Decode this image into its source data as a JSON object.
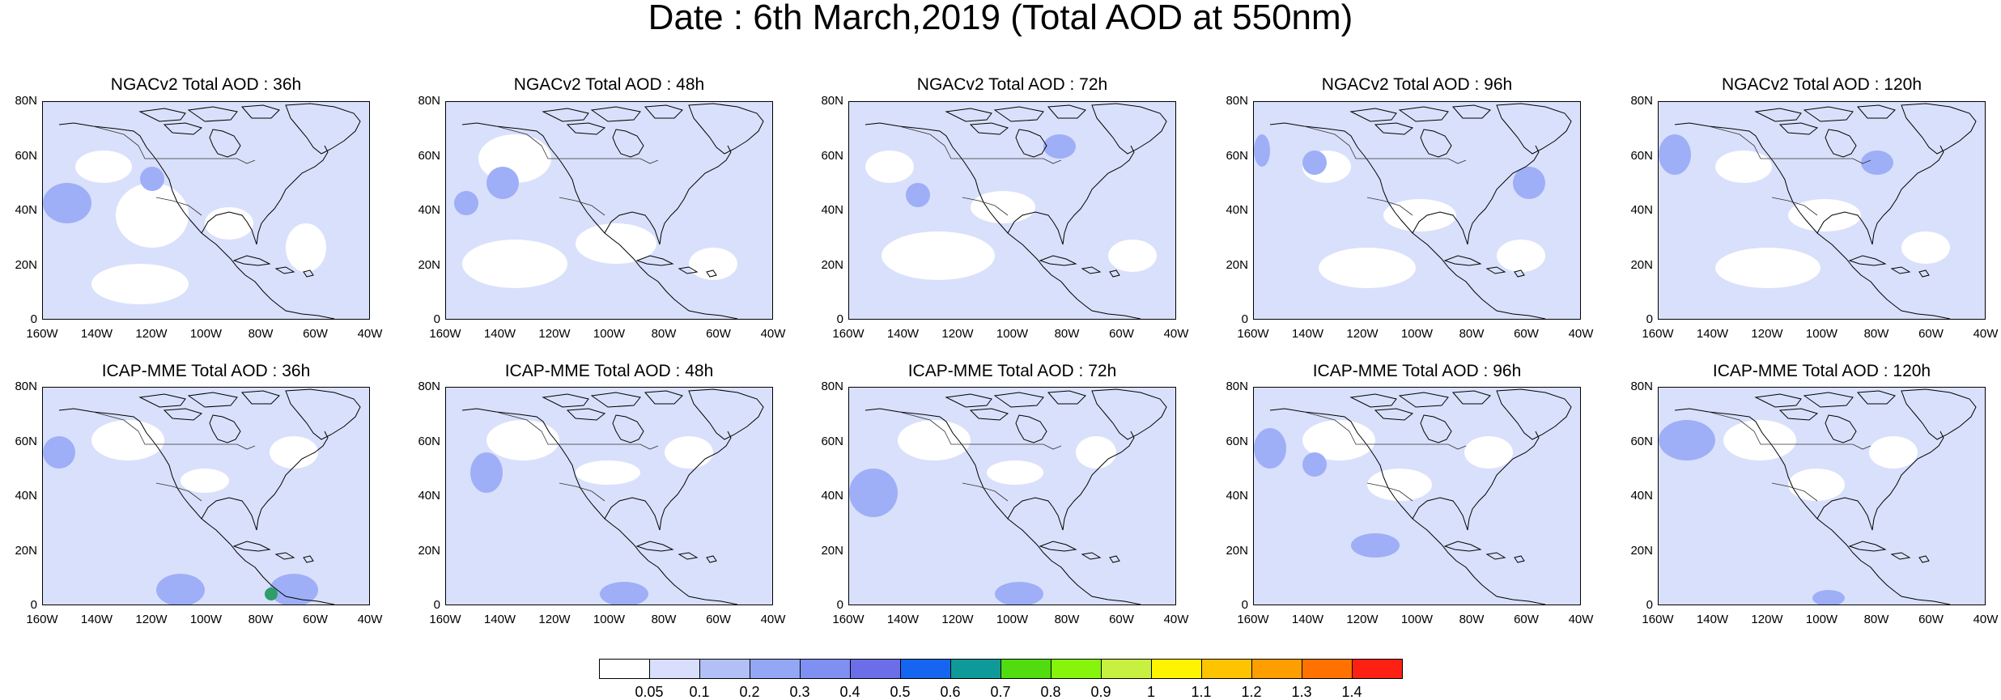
{
  "title": "Date : 6th March,2019 (Total AOD at 550nm)",
  "panel_titles": {
    "top": [
      "NGACv2 Total AOD : 36h",
      "NGACv2 Total AOD : 48h",
      "NGACv2 Total AOD : 72h",
      "NGACv2 Total AOD : 96h",
      "NGACv2 Total AOD : 120h"
    ],
    "bottom": [
      "ICAP-MME Total AOD : 36h",
      "ICAP-MME Total AOD : 48h",
      "ICAP-MME Total AOD : 72h",
      "ICAP-MME Total AOD : 96h",
      "ICAP-MME Total AOD : 120h"
    ]
  },
  "lat_ticks": [
    "80N",
    "60N",
    "40N",
    "20N",
    "0"
  ],
  "lon_ticks": [
    "160W",
    "140W",
    "120W",
    "100W",
    "80W",
    "60W",
    "40W"
  ],
  "colorbar": {
    "labels": [
      "0.05",
      "0.1",
      "0.2",
      "0.3",
      "0.4",
      "0.5",
      "0.6",
      "0.7",
      "0.8",
      "0.9",
      "1",
      "1.1",
      "1.2",
      "1.3",
      "1.4"
    ],
    "colors": [
      "#ffffff",
      "#d8defc",
      "#b3c0f8",
      "#93a7f6",
      "#7f8ff2",
      "#6b6ee8",
      "#1665f0",
      "#0f9a9a",
      "#50dc0e",
      "#86f50b",
      "#c8f040",
      "#fff400",
      "#ffc400",
      "#ff9e00",
      "#ff7200",
      "#ff2014"
    ]
  }
}
